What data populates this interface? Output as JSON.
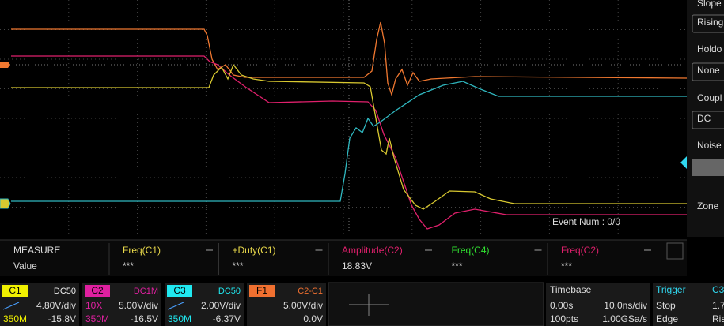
{
  "trigger_panel": {
    "items": [
      "Slope",
      "Rising",
      "Holdo",
      "None",
      "Coupl",
      "DC",
      "Noise",
      "Zone"
    ]
  },
  "screen": {
    "event": "Event Num : 0/0"
  },
  "measure": {
    "title": "MEASURE",
    "row_label": "Value",
    "columns": [
      {
        "name": "Freq(C1)",
        "value": "***"
      },
      {
        "name": "+Duty(C1)",
        "value": "***"
      },
      {
        "name": "Amplitude(C2)",
        "value": "18.83V"
      },
      {
        "name": "Freq(C4)",
        "value": "***"
      },
      {
        "name": "Freq(C2)",
        "value": "***"
      }
    ]
  },
  "channels": [
    {
      "name": "C1",
      "coupling": "DC50",
      "probe": "",
      "scale": "4.80V/div",
      "bw": "350M",
      "offset": "-15.8V"
    },
    {
      "name": "C2",
      "coupling": "DC1M",
      "probe": "10X",
      "scale": "5.00V/div",
      "bw": "350M",
      "offset": "-16.5V"
    },
    {
      "name": "C3",
      "coupling": "DC50",
      "probe": "",
      "scale": "2.00V/div",
      "bw": "350M",
      "offset": "-6.37V"
    },
    {
      "name": "F1",
      "coupling": "C2-C1",
      "probe": "",
      "scale": "5.00V/div",
      "bw": "",
      "offset": "0.0V"
    }
  ],
  "timebase": {
    "title": "Timebase",
    "delay": "0.00s",
    "scale": "10.0ns/div",
    "points": "100pts",
    "rate": "1.00GSa/s"
  },
  "trigger": {
    "title": "Trigger",
    "source": "C3",
    "state": "Stop",
    "level": "1.7",
    "type": "Edge",
    "slope": "Ris"
  }
}
